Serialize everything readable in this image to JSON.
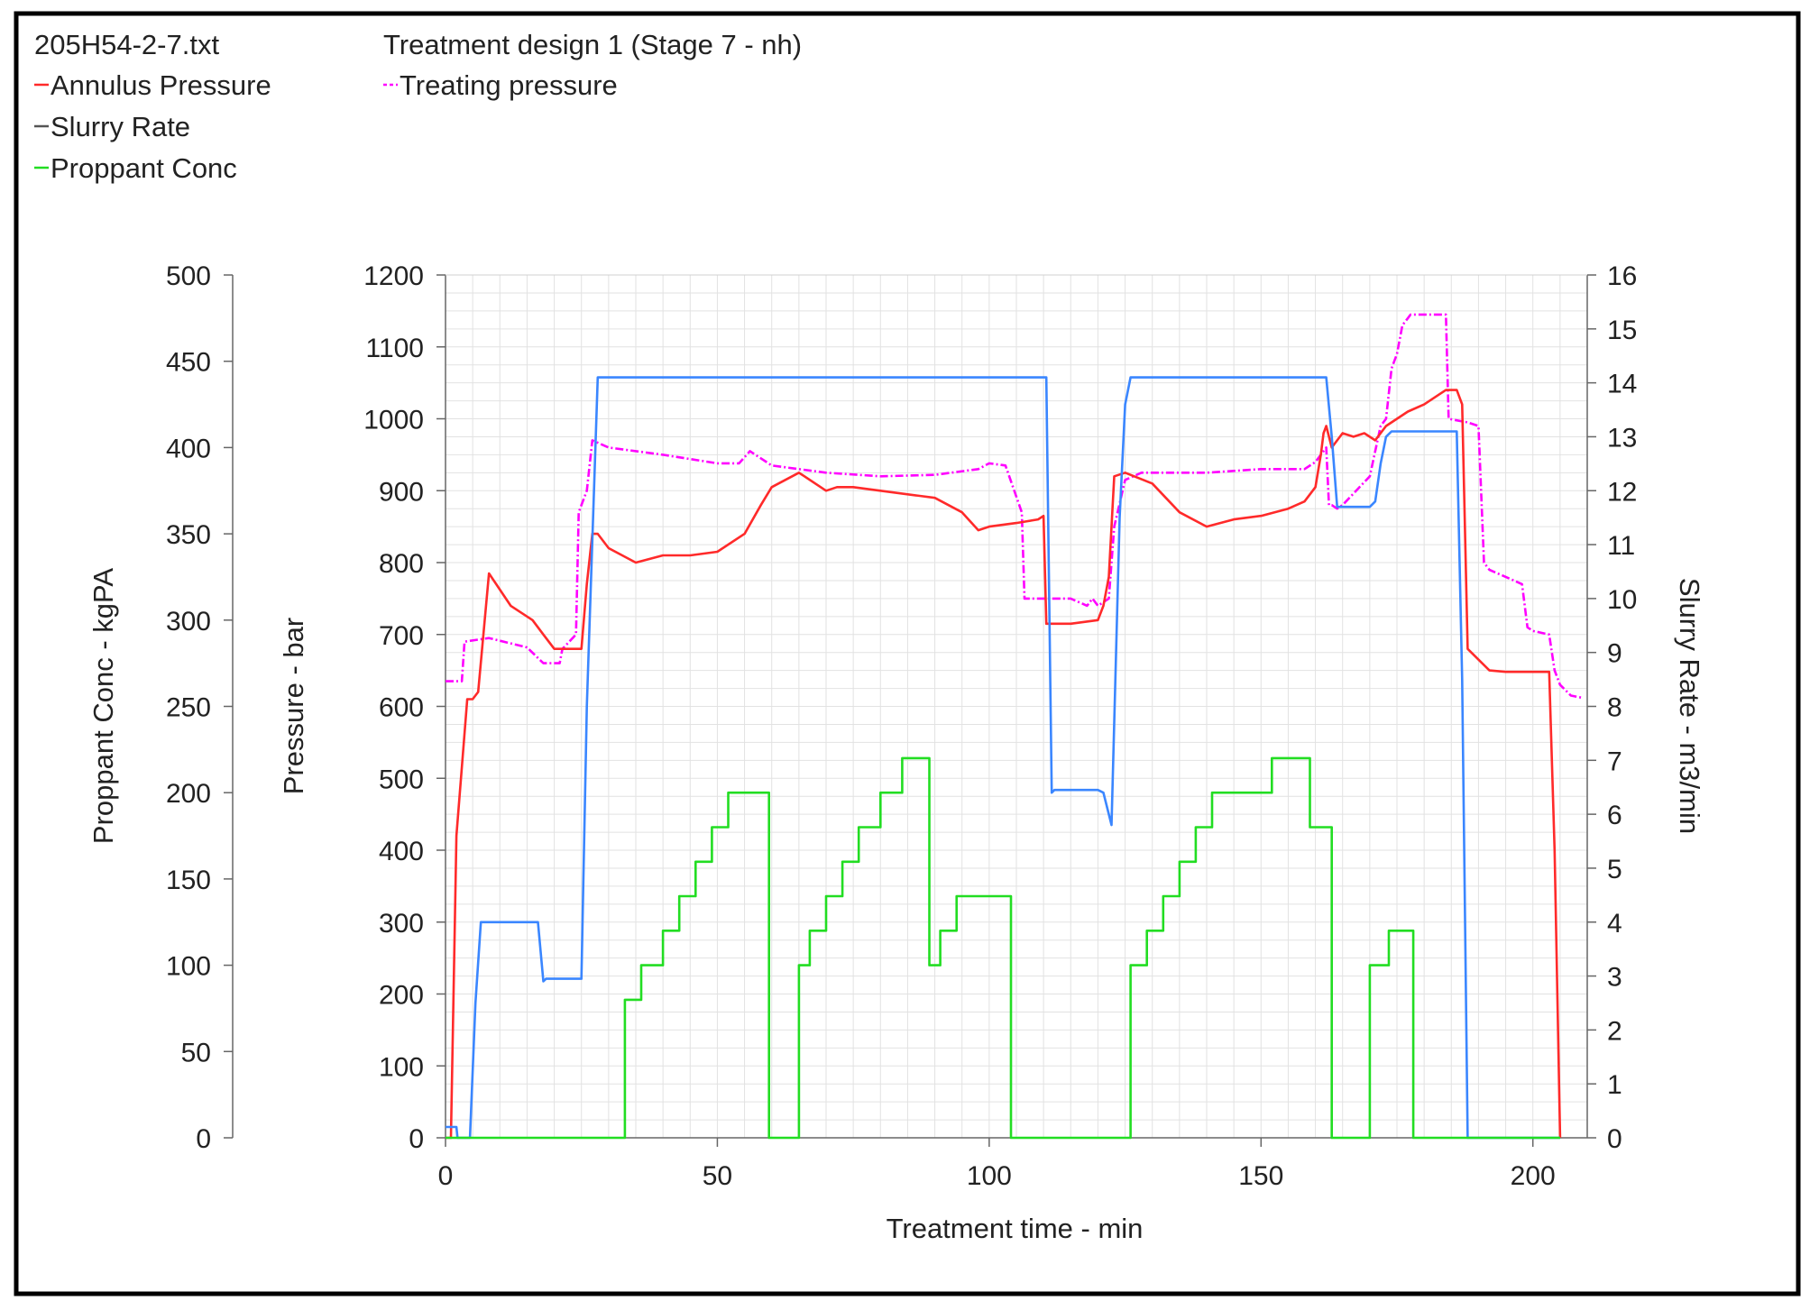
{
  "header": {
    "file_name": "205H54-2-7.txt",
    "design_title": "Treatment design 1 (Stage 7 - nh)"
  },
  "legend": {
    "annulus": "Annulus Pressure",
    "treating": "Treating pressure",
    "slurry": "Slurry Rate",
    "proppant": "Proppant Conc"
  },
  "colors": {
    "annulus": "#ff2a2a",
    "treating": "#ff00ff",
    "slurry": "#3a86ff",
    "proppant": "#22dd22",
    "legend_slurry_marker": "#555555",
    "grid": "#e2e2e2",
    "axis": "#666666"
  },
  "chart_data": {
    "type": "line",
    "xlabel": "Treatment time - min",
    "x_range": [
      0,
      210
    ],
    "x_ticks": [
      0,
      50,
      100,
      150,
      200
    ],
    "axes": {
      "proppant": {
        "label": "Proppant Conc - kgPA",
        "range": [
          0,
          500
        ],
        "ticks": [
          0,
          50,
          100,
          150,
          200,
          250,
          300,
          350,
          400,
          450,
          500
        ]
      },
      "pressure": {
        "label": "Pressure - bar",
        "range": [
          0,
          1200
        ],
        "ticks": [
          0,
          100,
          200,
          300,
          400,
          500,
          600,
          700,
          800,
          900,
          1000,
          1100,
          1200
        ]
      },
      "slurry": {
        "label": "Slurry Rate - m3/min",
        "range": [
          0,
          16
        ],
        "ticks": [
          0,
          1,
          2,
          3,
          4,
          5,
          6,
          7,
          8,
          9,
          10,
          11,
          12,
          13,
          14,
          15,
          16
        ]
      }
    },
    "series": [
      {
        "name": "Treating pressure",
        "axis": "pressure",
        "style": "dashdot",
        "x": [
          0,
          3,
          3.5,
          8,
          15,
          18,
          21,
          21.5,
          24,
          24.5,
          26,
          27,
          30,
          40,
          50,
          54,
          56,
          60,
          70,
          80,
          90,
          98,
          100,
          103,
          106,
          106.5,
          110,
          115,
          118,
          119,
          120,
          122,
          123,
          125,
          128,
          140,
          150,
          158,
          160,
          162,
          162.5,
          163,
          164,
          165,
          170,
          172,
          173,
          174,
          175,
          176,
          177,
          177.5,
          180,
          184,
          184.5,
          188,
          190,
          191,
          192,
          198,
          199,
          200,
          203,
          204,
          205,
          207,
          209
        ],
        "y": [
          635,
          635,
          690,
          695,
          682,
          660,
          660,
          680,
          700,
          870,
          900,
          970,
          960,
          950,
          938,
          938,
          955,
          935,
          925,
          920,
          922,
          930,
          938,
          935,
          870,
          750,
          750,
          750,
          740,
          750,
          740,
          750,
          850,
          915,
          925,
          925,
          930,
          930,
          940,
          960,
          880,
          880,
          875,
          880,
          920,
          990,
          1000,
          1070,
          1090,
          1130,
          1140,
          1145,
          1145,
          1145,
          1000,
          995,
          990,
          800,
          790,
          770,
          710,
          705,
          700,
          650,
          630,
          615,
          612
        ]
      },
      {
        "name": "Annulus Pressure",
        "axis": "pressure",
        "style": "solid",
        "x": [
          0,
          1,
          2,
          4,
          5,
          6,
          8,
          12,
          16,
          18,
          20,
          24,
          25,
          26,
          27,
          28,
          30,
          35,
          40,
          45,
          50,
          55,
          58,
          60,
          65,
          70,
          72,
          75,
          80,
          90,
          95,
          98,
          100,
          105,
          109,
          110,
          110.5,
          115,
          120,
          121,
          122,
          123,
          125,
          130,
          135,
          140,
          145,
          150,
          155,
          158,
          160,
          161,
          161.5,
          162,
          163,
          165,
          167,
          169,
          171,
          173,
          175,
          177,
          180,
          183,
          184,
          186,
          187,
          188,
          192,
          195,
          200,
          203,
          204,
          205
        ],
        "y": [
          0,
          0,
          420,
          610,
          610,
          620,
          785,
          740,
          720,
          700,
          680,
          680,
          680,
          770,
          840,
          840,
          820,
          800,
          810,
          810,
          815,
          840,
          880,
          905,
          925,
          900,
          905,
          905,
          900,
          890,
          870,
          845,
          850,
          855,
          860,
          865,
          715,
          715,
          720,
          740,
          780,
          920,
          925,
          910,
          870,
          850,
          860,
          865,
          875,
          885,
          905,
          950,
          980,
          990,
          960,
          980,
          975,
          980,
          970,
          990,
          1000,
          1010,
          1020,
          1035,
          1040,
          1040,
          1020,
          680,
          650,
          648,
          648,
          648,
          400,
          0
        ]
      },
      {
        "name": "Slurry Rate",
        "axis": "slurry",
        "style": "solid",
        "x": [
          0,
          1,
          1.5,
          2,
          2.2,
          4.5,
          5.5,
          6.5,
          17,
          18,
          18.5,
          25,
          26,
          28,
          30,
          40,
          60,
          80,
          100,
          110.5,
          111.5,
          112,
          120,
          121,
          122.5,
          124,
          125,
          126,
          140,
          160,
          162,
          163,
          164,
          165,
          170,
          171,
          172,
          173,
          174,
          177,
          180,
          186,
          187,
          188,
          205
        ],
        "y": [
          0.2,
          0.2,
          0.2,
          0.2,
          0,
          0,
          2.5,
          4.0,
          4.0,
          2.9,
          2.95,
          2.95,
          8.0,
          14.1,
          14.1,
          14.1,
          14.1,
          14.1,
          14.1,
          14.1,
          6.4,
          6.45,
          6.45,
          6.4,
          5.8,
          11.5,
          13.6,
          14.1,
          14.1,
          14.1,
          14.1,
          13.0,
          11.7,
          11.7,
          11.7,
          11.8,
          12.5,
          13.0,
          13.1,
          13.1,
          13.1,
          13.1,
          8.5,
          0,
          0
        ]
      },
      {
        "name": "Proppant Conc",
        "axis": "proppant",
        "style": "solid",
        "x": [
          0,
          33,
          33,
          36,
          36,
          40,
          40,
          43,
          43,
          46,
          46,
          49,
          49,
          52,
          52,
          59.5,
          59.5,
          65,
          65,
          67,
          67,
          70,
          70,
          73,
          73,
          76,
          76,
          80,
          80,
          84,
          84,
          89,
          89,
          91,
          91,
          94,
          94,
          97,
          97,
          104,
          104,
          126,
          126,
          129,
          129,
          132,
          132,
          135,
          135,
          138,
          138,
          141,
          141,
          152,
          152,
          159,
          159,
          163,
          163,
          170,
          170,
          173.5,
          173.5,
          178,
          178,
          205
        ],
        "y": [
          0,
          0,
          80,
          80,
          100,
          100,
          120,
          120,
          140,
          140,
          160,
          160,
          180,
          180,
          200,
          200,
          0,
          0,
          100,
          100,
          120,
          120,
          140,
          140,
          160,
          160,
          180,
          180,
          200,
          200,
          220,
          220,
          100,
          100,
          120,
          120,
          140,
          140,
          140,
          140,
          0,
          0,
          100,
          100,
          120,
          120,
          140,
          140,
          160,
          160,
          180,
          180,
          200,
          200,
          220,
          220,
          180,
          180,
          0,
          0,
          100,
          100,
          120,
          120,
          0,
          0
        ]
      }
    ]
  }
}
